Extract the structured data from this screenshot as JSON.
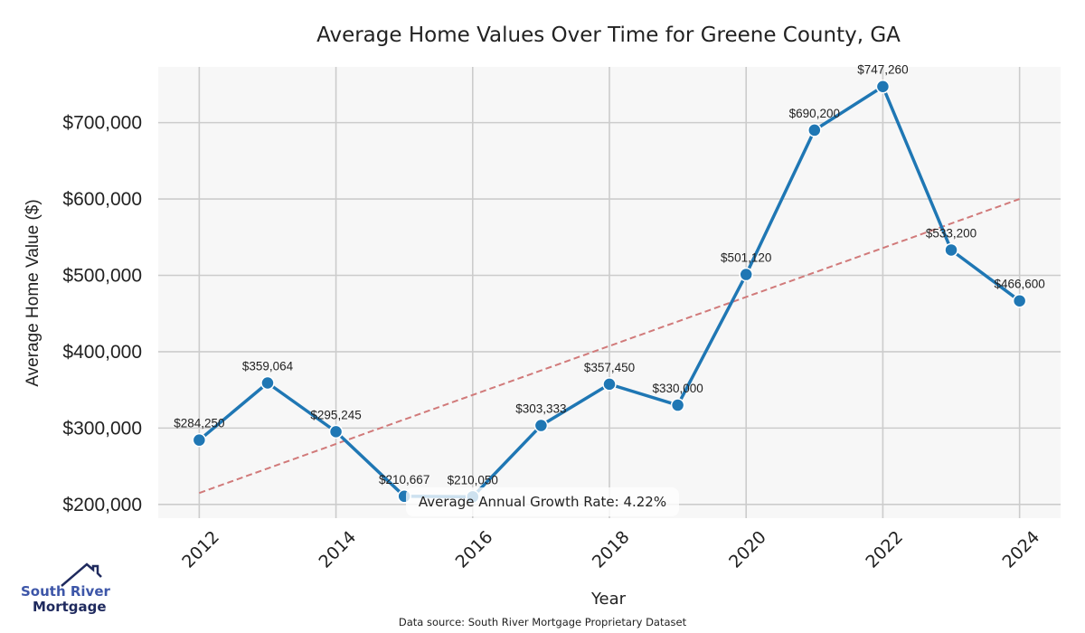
{
  "chart_data": {
    "type": "line",
    "title": "Average Home Values Over Time for Greene County, GA",
    "xlabel": "Year",
    "ylabel": "Average Home Value ($)",
    "x": [
      2012,
      2013,
      2014,
      2015,
      2016,
      2017,
      2018,
      2019,
      2020,
      2021,
      2022,
      2023,
      2024
    ],
    "series": [
      {
        "name": "Average Home Value",
        "color": "#1f77b4",
        "values": [
          284250,
          359064,
          295245,
          210667,
          210050,
          303333,
          357450,
          330000,
          501120,
          690200,
          747260,
          533200,
          466600
        ],
        "labels": [
          "$284,250",
          "$359,064",
          "$295,245",
          "$210,667",
          "$210,050",
          "$303,333",
          "$357,450",
          "$330,000",
          "$501,120",
          "$690,200",
          "$747,260",
          "$533,200",
          "$466,600"
        ]
      },
      {
        "name": "Trend",
        "color": "#d17a7a",
        "style": "dashed",
        "x": [
          2012,
          2024
        ],
        "values": [
          215000,
          600000
        ]
      }
    ],
    "xticks": [
      2012,
      2014,
      2016,
      2018,
      2020,
      2022,
      2024
    ],
    "xtick_labels": [
      "2012",
      "2014",
      "2016",
      "2018",
      "2020",
      "2022",
      "2024"
    ],
    "yticks": [
      200000,
      300000,
      400000,
      500000,
      600000,
      700000
    ],
    "ytick_labels": [
      "$200,000",
      "$300,000",
      "$400,000",
      "$500,000",
      "$600,000",
      "$700,000"
    ],
    "xlim": [
      2011.4,
      2024.6
    ],
    "ylim": [
      182000,
      773000
    ],
    "grid": true,
    "annotation": "Average Annual Growth Rate: 4.22%",
    "source": "Data source: South River Mortgage Proprietary Dataset"
  },
  "logo": {
    "line1": "South River",
    "line2": "Mortgage"
  }
}
